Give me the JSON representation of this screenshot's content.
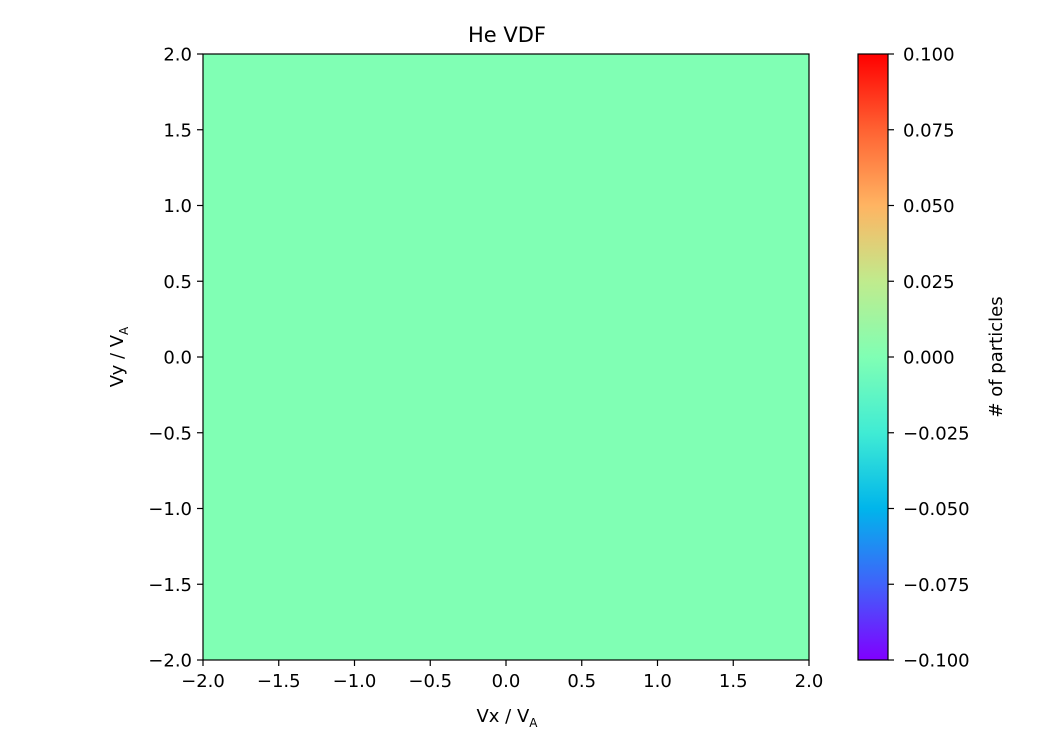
{
  "chart_data": {
    "type": "heatmap",
    "title": "He VDF",
    "xlabel": {
      "main": "Vx / V",
      "sub": "A"
    },
    "ylabel": {
      "main": "Vy / V",
      "sub": "A"
    },
    "xlim": [
      -2.0,
      2.0
    ],
    "ylim": [
      -2.0,
      2.0
    ],
    "x_ticks": [
      -2.0,
      -1.5,
      -1.0,
      -0.5,
      0.0,
      0.5,
      1.0,
      1.5,
      2.0
    ],
    "y_ticks": [
      -2.0,
      -1.5,
      -1.0,
      -0.5,
      0.0,
      0.5,
      1.0,
      1.5,
      2.0
    ],
    "x_tick_labels": [
      "−2.0",
      "−1.5",
      "−1.0",
      "−0.5",
      "0.0",
      "0.5",
      "1.0",
      "1.5",
      "2.0"
    ],
    "y_tick_labels": [
      "−2.0",
      "−1.5",
      "−1.0",
      "−0.5",
      "0.0",
      "0.5",
      "1.0",
      "1.5",
      "2.0"
    ],
    "values": [
      [
        0.0
      ]
    ],
    "fill_color": "#80ffb4",
    "colorbar": {
      "label": "# of particles",
      "colormap": "rainbow",
      "range": [
        -0.1,
        0.1
      ],
      "ticks": [
        -0.1,
        -0.075,
        -0.05,
        -0.025,
        0.0,
        0.025,
        0.05,
        0.075,
        0.1
      ],
      "tick_labels": [
        "−0.100",
        "−0.075",
        "−0.050",
        "−0.025",
        "0.000",
        "0.025",
        "0.050",
        "0.075",
        "0.100"
      ],
      "gradient_colors": [
        "#8000ff",
        "#4062fa",
        "#00b5eb",
        "#40ecd4",
        "#80ffb4",
        "#c0eb8d",
        "#ffb462",
        "#ff6232",
        "#ff0000"
      ]
    },
    "grid": false,
    "legend": "none"
  }
}
